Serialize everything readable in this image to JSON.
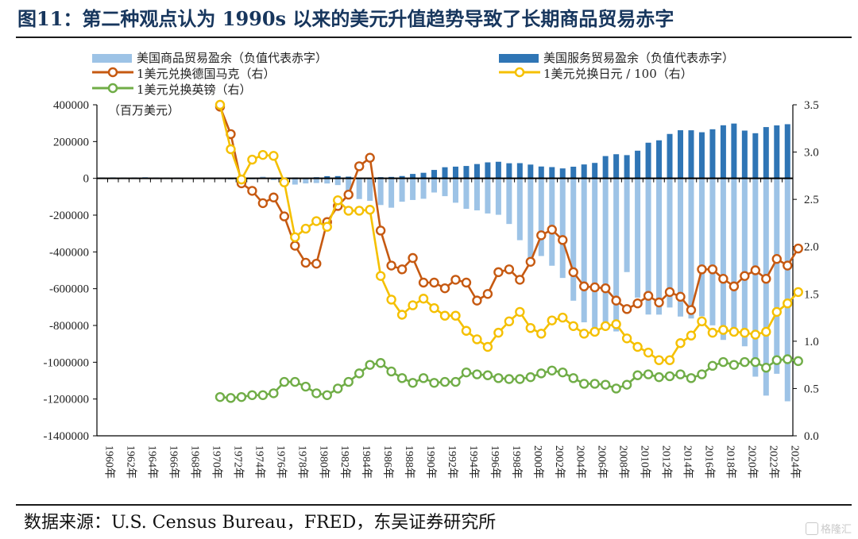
{
  "page": {
    "title": "图11：第二种观点认为 1990s 以来的美元升值趋势导致了长期商品贸易赤字",
    "source": "数据来源：U.S. Census Bureau，FRED，东吴证券研究所",
    "watermark": "格隆汇"
  },
  "chart_data": {
    "type": "bar",
    "left_axis_unit": "（百万美元）",
    "left_ticks": [
      "400000",
      "200000",
      "0",
      "-200000",
      "-400000",
      "-600000",
      "-800000",
      "-1000000",
      "-1200000",
      "-1400000"
    ],
    "ylim_left": [
      -1400000,
      400000
    ],
    "right_ticks": [
      "3.5",
      "3.0",
      "2.5",
      "2.0",
      "1.5",
      "1.0",
      "0.5",
      "0.0"
    ],
    "ylim_right": [
      0,
      3.5
    ],
    "categories": [
      "1960年",
      "1961年",
      "1962年",
      "1963年",
      "1964年",
      "1965年",
      "1966年",
      "1967年",
      "1968年",
      "1969年",
      "1970年",
      "1971年",
      "1972年",
      "1973年",
      "1974年",
      "1975年",
      "1976年",
      "1977年",
      "1978年",
      "1979年",
      "1980年",
      "1981年",
      "1982年",
      "1983年",
      "1984年",
      "1985年",
      "1986年",
      "1987年",
      "1988年",
      "1989年",
      "1990年",
      "1991年",
      "1992年",
      "1993年",
      "1994年",
      "1995年",
      "1996年",
      "1997年",
      "1998年",
      "1999年",
      "2000年",
      "2001年",
      "2002年",
      "2003年",
      "2004年",
      "2005年",
      "2006年",
      "2007年",
      "2008年",
      "2009年",
      "2010年",
      "2011年",
      "2012年",
      "2013年",
      "2014年",
      "2015年",
      "2016年",
      "2017年",
      "2018年",
      "2019年",
      "2020年",
      "2021年",
      "2022年",
      "2023年",
      "2024年"
    ],
    "tick_labels": [
      "1960年",
      "1962年",
      "1964年",
      "1966年",
      "1968年",
      "1970年",
      "1972年",
      "1974年",
      "1976年",
      "1978年",
      "1980年",
      "1982年",
      "1984年",
      "1986年",
      "1988年",
      "1990年",
      "1992年",
      "1994年",
      "1996年",
      "1998年",
      "2000年",
      "2002年",
      "2004年",
      "2006年",
      "2008年",
      "2010年",
      "2012年",
      "2014年",
      "2016年",
      "2018年",
      "2020年",
      "2022年",
      "2024年"
    ],
    "bar_series": [
      {
        "name": "美国商品贸易盈余（负值代表赤字）",
        "axis": "left",
        "color": "#9dc3e6",
        "values": [
          5000,
          5500,
          4500,
          5200,
          6800,
          5000,
          3800,
          3800,
          600,
          600,
          2600,
          -2300,
          -6400,
          900,
          -5500,
          8900,
          -9500,
          -31100,
          -33900,
          -27600,
          -25500,
          -28000,
          -36500,
          -67100,
          -112500,
          -122200,
          -145100,
          -159600,
          -127000,
          -117700,
          -111000,
          -76900,
          -96900,
          -132500,
          -165800,
          -174200,
          -191000,
          -198100,
          -248200,
          -336300,
          -446800,
          -422400,
          -475200,
          -541600,
          -665400,
          -782800,
          -837300,
          -821200,
          -832500,
          -509700,
          -648700,
          -740600,
          -741100,
          -702200,
          -751500,
          -761900,
          -749800,
          -799300,
          -878700,
          -854400,
          -913200,
          -1078300,
          -1181400,
          -1062700,
          -1212300
        ]
      },
      {
        "name": "美国服务贸易盈余（负值代表赤字）",
        "axis": "left",
        "color": "#2f75b5",
        "values": [
          -1400,
          -1400,
          -1000,
          -900,
          -500,
          -300,
          -300,
          -1300,
          -1300,
          -1900,
          -2300,
          -1000,
          -1600,
          100,
          1200,
          3500,
          3400,
          3800,
          4200,
          3000,
          6100,
          11900,
          12300,
          9300,
          3300,
          300,
          6500,
          7900,
          12600,
          24000,
          30200,
          45800,
          60400,
          63700,
          67300,
          77800,
          86900,
          90200,
          82100,
          82700,
          74900,
          64400,
          61200,
          54000,
          63300,
          75600,
          84000,
          121100,
          131200,
          126300,
          150400,
          193800,
          206800,
          241400,
          261600,
          261400,
          250700,
          266900,
          288600,
          298000,
          259700,
          245400,
          278800,
          288000,
          294400
        ]
      }
    ],
    "line_series": [
      {
        "name": "1美元兑换德国马克（右）",
        "axis": "right",
        "color": "#c65911",
        "x_start": "1971年",
        "values": [
          3.48,
          3.19,
          2.67,
          2.59,
          2.46,
          2.52,
          2.32,
          2.01,
          1.83,
          1.82,
          2.26,
          2.43,
          2.55,
          2.85,
          2.94,
          2.17,
          1.8,
          1.76,
          1.88,
          1.62,
          1.62,
          1.56,
          1.65,
          1.62,
          1.43,
          1.5,
          1.73,
          1.76,
          1.65,
          1.84,
          2.12,
          2.18,
          2.07,
          1.73,
          1.58,
          1.57,
          1.56,
          1.43,
          1.34,
          1.4,
          1.48,
          1.41,
          1.52,
          1.47,
          1.33,
          1.76,
          1.76,
          1.66,
          1.58,
          1.69,
          1.75,
          1.66,
          1.87,
          1.8,
          1.98
        ]
      },
      {
        "name": "1美元兑换日元 / 100（右）",
        "axis": "right",
        "color": "#f5c000",
        "x_start": "1971年",
        "values": [
          3.5,
          3.03,
          2.71,
          2.92,
          2.97,
          2.96,
          2.68,
          2.1,
          2.19,
          2.27,
          2.21,
          2.49,
          2.38,
          2.38,
          2.39,
          1.69,
          1.44,
          1.28,
          1.38,
          1.45,
          1.35,
          1.27,
          1.27,
          1.11,
          1.02,
          0.94,
          1.09,
          1.21,
          1.31,
          1.14,
          1.08,
          1.22,
          1.25,
          1.16,
          1.08,
          1.1,
          1.16,
          1.18,
          1.03,
          0.94,
          0.88,
          0.8,
          0.8,
          0.98,
          1.06,
          1.21,
          1.09,
          1.12,
          1.1,
          1.09,
          1.07,
          1.1,
          1.31,
          1.4,
          1.52
        ]
      },
      {
        "name": "1美元兑换英镑（右）",
        "axis": "right",
        "color": "#70ad47",
        "x_start": "1971年",
        "values": [
          0.41,
          0.4,
          0.41,
          0.43,
          0.43,
          0.45,
          0.57,
          0.57,
          0.52,
          0.45,
          0.43,
          0.5,
          0.57,
          0.66,
          0.75,
          0.77,
          0.68,
          0.61,
          0.56,
          0.61,
          0.56,
          0.57,
          0.57,
          0.67,
          0.65,
          0.64,
          0.61,
          0.6,
          0.6,
          0.62,
          0.66,
          0.69,
          0.67,
          0.61,
          0.55,
          0.55,
          0.54,
          0.5,
          0.54,
          0.64,
          0.65,
          0.62,
          0.63,
          0.65,
          0.61,
          0.65,
          0.74,
          0.78,
          0.75,
          0.78,
          0.78,
          0.72,
          0.8,
          0.81,
          0.79
        ]
      }
    ],
    "grid": false
  }
}
